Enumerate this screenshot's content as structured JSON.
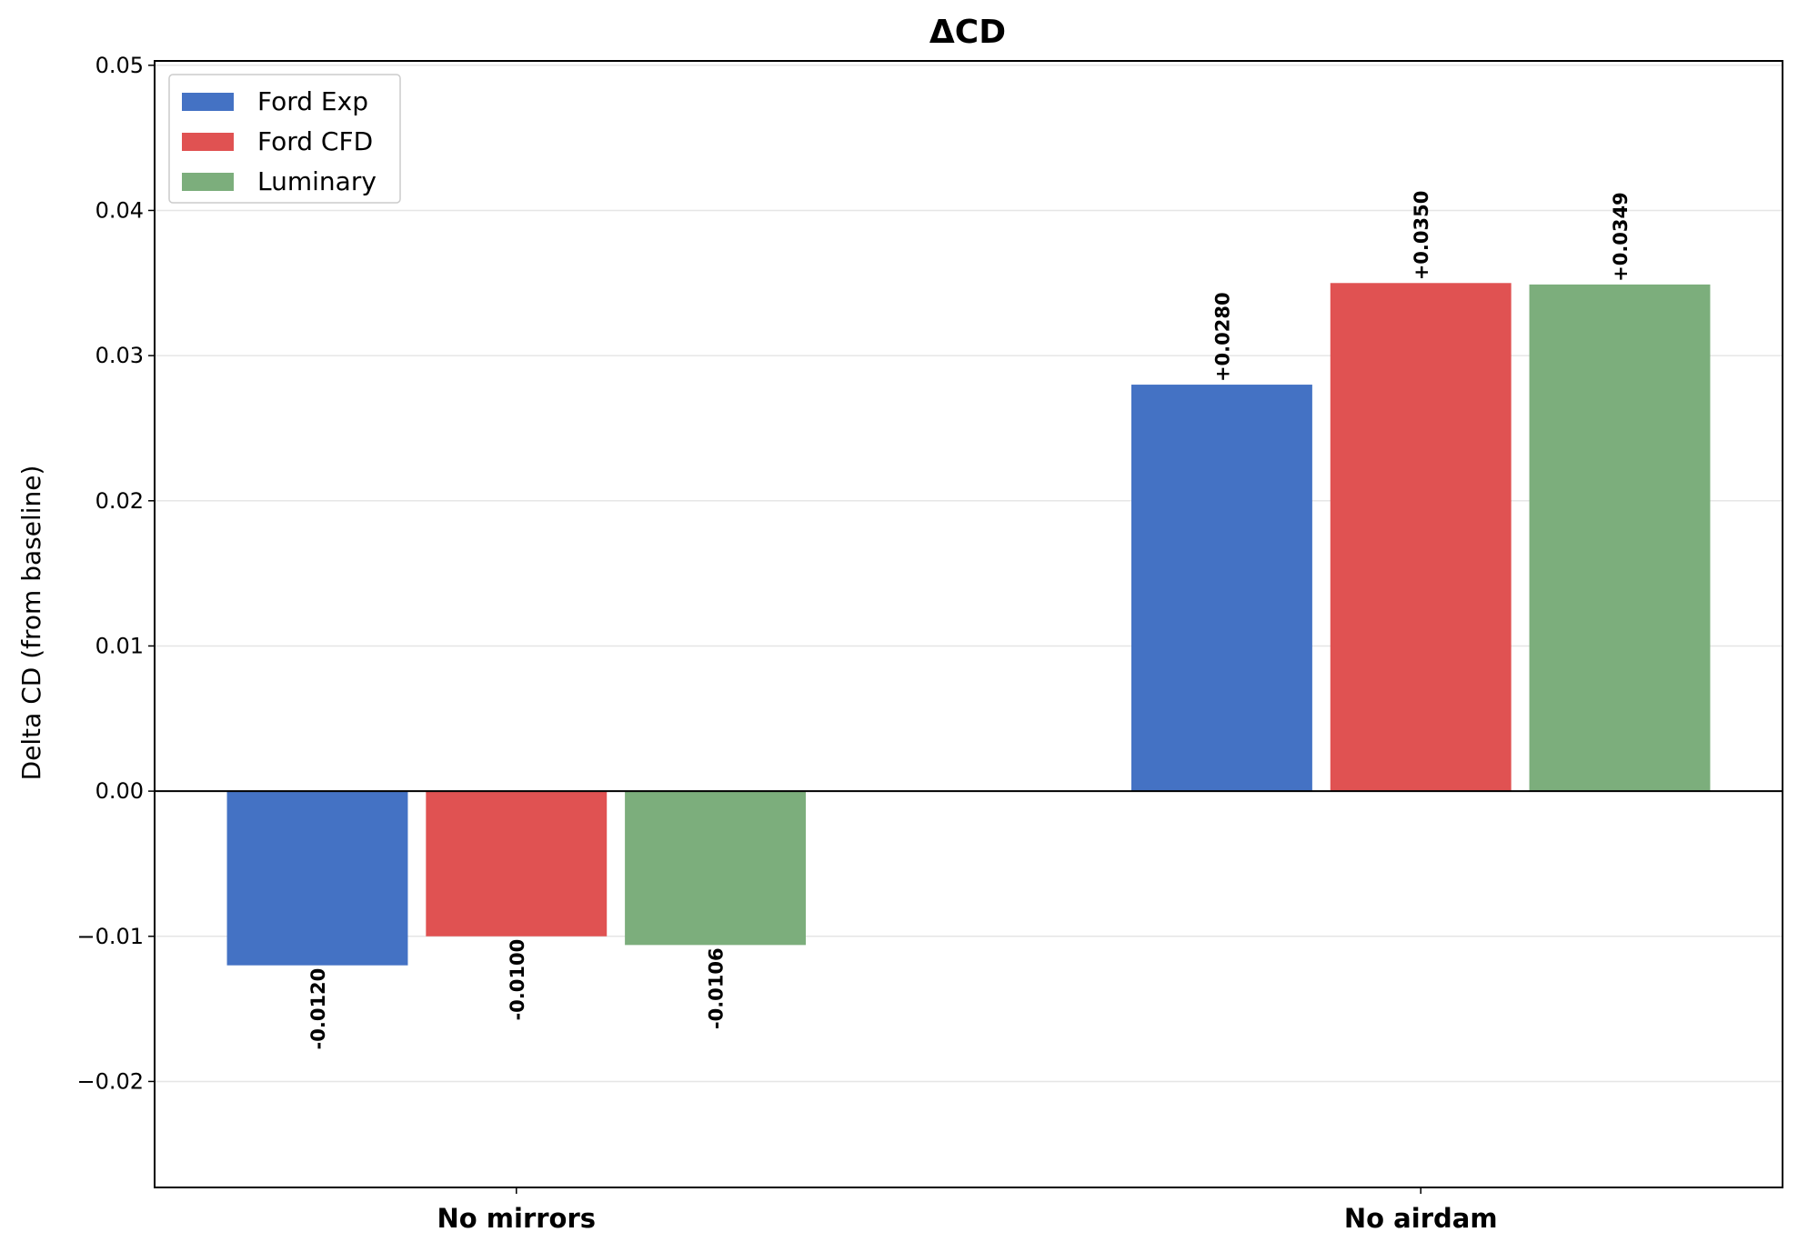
{
  "chart_data": {
    "type": "bar",
    "title": "ΔCD",
    "xlabel": "",
    "ylabel": "Delta CD (from baseline)",
    "categories": [
      "No mirrors",
      "No airdam"
    ],
    "series": [
      {
        "name": "Ford Exp",
        "color": "#4472c4",
        "values": [
          -0.012,
          0.028
        ],
        "labels": [
          "-0.0120",
          "+0.0280"
        ]
      },
      {
        "name": "Ford CFD",
        "color": "#e05252",
        "values": [
          -0.01,
          0.035
        ],
        "labels": [
          "-0.0100",
          "+0.0350"
        ]
      },
      {
        "name": "Luminary",
        "color": "#7cae7c",
        "values": [
          -0.0106,
          0.0349
        ],
        "labels": [
          "-0.0106",
          "+0.0349"
        ]
      }
    ],
    "ylim": [
      -0.0273,
      0.0503
    ],
    "yticks": [
      -0.02,
      -0.01,
      0.0,
      0.01,
      0.02,
      0.03,
      0.04,
      0.05
    ],
    "ytick_labels": [
      "−0.02",
      "−0.01",
      "0.00",
      "0.01",
      "0.02",
      "0.03",
      "0.04",
      "0.05"
    ],
    "grid": "horizontal",
    "legend": "top-left",
    "zero_line": true
  }
}
